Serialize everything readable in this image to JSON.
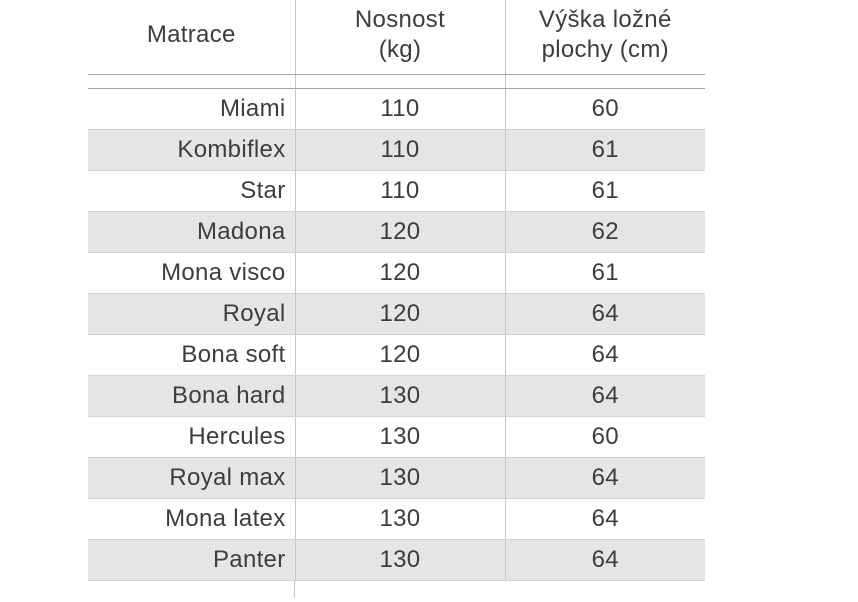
{
  "chart_data": {
    "type": "table",
    "columns": [
      "Matrace",
      "Nosnost (kg)",
      "Výška ložné plochy (cm)"
    ],
    "rows": [
      [
        "Miami",
        110,
        60
      ],
      [
        "Kombiflex",
        110,
        61
      ],
      [
        "Star",
        110,
        61
      ],
      [
        "Madona",
        120,
        62
      ],
      [
        "Mona visco",
        120,
        61
      ],
      [
        "Royal",
        120,
        64
      ],
      [
        "Bona soft",
        120,
        64
      ],
      [
        "Bona hard",
        130,
        64
      ],
      [
        "Hercules",
        130,
        60
      ],
      [
        "Royal max",
        130,
        64
      ],
      [
        "Mona latex",
        130,
        64
      ],
      [
        "Panter",
        130,
        64
      ]
    ]
  },
  "table": {
    "header_display": [
      "Matrace",
      "Nosnost\n(kg)",
      "Výška ložné\nplochy (cm)"
    ]
  },
  "colors": {
    "text": "#3d3d3d",
    "zebra": "#e5e5e5",
    "header_border": "#a6a6a6",
    "row_border": "#d2d2d2",
    "divider": "#c6c6c6",
    "background": "#ffffff"
  }
}
